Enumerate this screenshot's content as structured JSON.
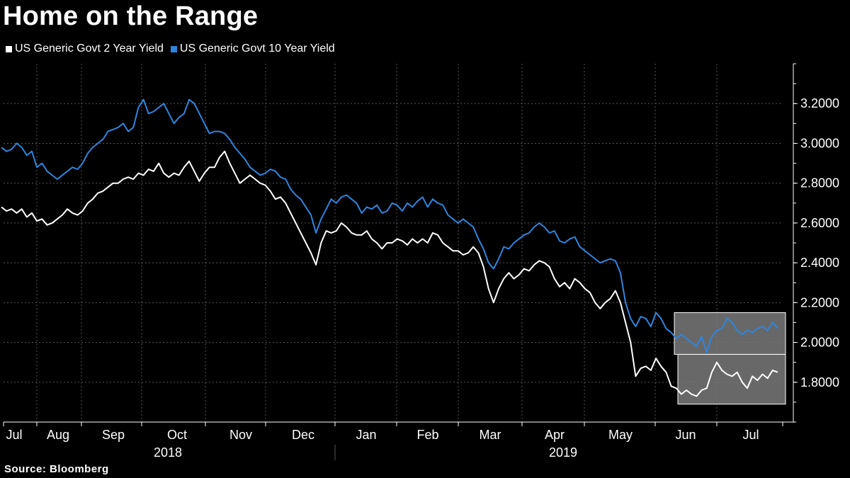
{
  "chart_data": {
    "type": "line",
    "title": "Home on the Range",
    "source": "Source: Bloomberg",
    "colors": {
      "background": "#000000",
      "series_2y": "#ffffff",
      "series_10y": "#2e86de",
      "grid": "#555555",
      "highlight_box": "#7a7a7a"
    },
    "y_axis": {
      "range": [
        1.6,
        3.4
      ],
      "ticks": [
        1.8,
        2.0,
        2.2,
        2.4,
        2.6,
        2.8,
        3.0,
        3.2
      ],
      "tick_labels": [
        "1.8000",
        "2.0000",
        "2.2000",
        "2.4000",
        "2.6000",
        "2.8000",
        "3.0000",
        "3.2000"
      ]
    },
    "x_axis": {
      "month_labels": [
        "Jul",
        "Aug",
        "Sep",
        "Oct",
        "Nov",
        "Dec",
        "Jan",
        "Feb",
        "Mar",
        "Apr",
        "May",
        "Jun",
        "Jul"
      ],
      "year_labels": [
        "2018",
        "2019"
      ]
    },
    "series": [
      {
        "name": "US Generic Govt 2 Year Yield",
        "color": "#ffffff",
        "values": [
          2.68,
          2.66,
          2.67,
          2.65,
          2.67,
          2.63,
          2.65,
          2.61,
          2.62,
          2.59,
          2.6,
          2.62,
          2.64,
          2.67,
          2.65,
          2.64,
          2.66,
          2.7,
          2.72,
          2.75,
          2.76,
          2.78,
          2.8,
          2.8,
          2.82,
          2.83,
          2.82,
          2.85,
          2.84,
          2.87,
          2.86,
          2.9,
          2.85,
          2.83,
          2.85,
          2.84,
          2.88,
          2.91,
          2.86,
          2.81,
          2.85,
          2.88,
          2.88,
          2.93,
          2.96,
          2.9,
          2.85,
          2.8,
          2.82,
          2.84,
          2.82,
          2.8,
          2.79,
          2.76,
          2.72,
          2.73,
          2.7,
          2.65,
          2.6,
          2.55,
          2.5,
          2.45,
          2.39,
          2.5,
          2.56,
          2.55,
          2.56,
          2.6,
          2.58,
          2.55,
          2.54,
          2.54,
          2.56,
          2.52,
          2.5,
          2.47,
          2.5,
          2.5,
          2.52,
          2.51,
          2.49,
          2.52,
          2.5,
          2.52,
          2.5,
          2.55,
          2.54,
          2.5,
          2.48,
          2.46,
          2.46,
          2.44,
          2.45,
          2.48,
          2.45,
          2.38,
          2.27,
          2.2,
          2.27,
          2.32,
          2.35,
          2.32,
          2.34,
          2.37,
          2.36,
          2.39,
          2.41,
          2.4,
          2.38,
          2.32,
          2.28,
          2.3,
          2.27,
          2.32,
          2.3,
          2.27,
          2.25,
          2.2,
          2.17,
          2.2,
          2.22,
          2.26,
          2.2,
          2.1,
          2.0,
          1.83,
          1.87,
          1.88,
          1.86,
          1.92,
          1.88,
          1.85,
          1.78,
          1.77,
          1.74,
          1.76,
          1.74,
          1.73,
          1.76,
          1.77,
          1.85,
          1.9,
          1.86,
          1.84,
          1.83,
          1.85,
          1.8,
          1.77,
          1.83,
          1.81,
          1.84,
          1.82,
          1.86,
          1.85
        ]
      },
      {
        "name": "US Generic Govt 10 Year Yield",
        "color": "#2e86de",
        "values": [
          2.98,
          2.96,
          2.97,
          3.0,
          2.98,
          2.94,
          2.96,
          2.88,
          2.9,
          2.86,
          2.84,
          2.82,
          2.84,
          2.86,
          2.88,
          2.87,
          2.9,
          2.95,
          2.98,
          3.0,
          3.02,
          3.06,
          3.07,
          3.08,
          3.1,
          3.06,
          3.08,
          3.18,
          3.22,
          3.15,
          3.16,
          3.18,
          3.2,
          3.15,
          3.1,
          3.13,
          3.15,
          3.22,
          3.2,
          3.15,
          3.1,
          3.05,
          3.06,
          3.06,
          3.05,
          3.02,
          2.98,
          2.95,
          2.92,
          2.88,
          2.86,
          2.84,
          2.85,
          2.87,
          2.86,
          2.83,
          2.82,
          2.77,
          2.74,
          2.72,
          2.68,
          2.64,
          2.55,
          2.62,
          2.67,
          2.72,
          2.7,
          2.73,
          2.74,
          2.72,
          2.7,
          2.65,
          2.68,
          2.67,
          2.69,
          2.65,
          2.66,
          2.7,
          2.69,
          2.66,
          2.7,
          2.68,
          2.71,
          2.73,
          2.68,
          2.72,
          2.7,
          2.69,
          2.64,
          2.62,
          2.6,
          2.62,
          2.6,
          2.58,
          2.52,
          2.47,
          2.4,
          2.37,
          2.42,
          2.48,
          2.47,
          2.5,
          2.52,
          2.54,
          2.55,
          2.58,
          2.6,
          2.58,
          2.55,
          2.56,
          2.51,
          2.5,
          2.52,
          2.53,
          2.48,
          2.46,
          2.44,
          2.42,
          2.4,
          2.41,
          2.42,
          2.41,
          2.35,
          2.2,
          2.12,
          2.08,
          2.13,
          2.12,
          2.08,
          2.15,
          2.12,
          2.07,
          2.05,
          2.02,
          2.04,
          2.02,
          2.0,
          1.98,
          2.03,
          1.95,
          2.03,
          2.06,
          2.07,
          2.12,
          2.1,
          2.06,
          2.04,
          2.06,
          2.05,
          2.07,
          2.08,
          2.06,
          2.1,
          2.07
        ]
      }
    ]
  },
  "legend": {
    "series_2y_label": "US Generic Govt 2 Year Yield",
    "series_10y_label": "US Generic Govt 10 Year Yield"
  }
}
